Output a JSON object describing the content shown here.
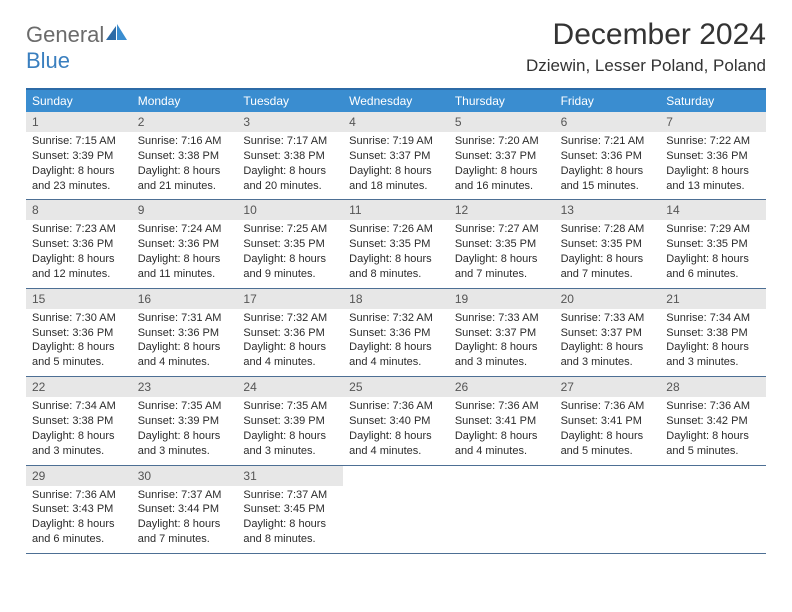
{
  "brand": {
    "part1": "General",
    "part2": "Blue"
  },
  "title": "December 2024",
  "location": "Dziewin, Lesser Poland, Poland",
  "colors": {
    "header_bar": "#3a8dd0",
    "top_rule": "#2c6aa6",
    "week_rule": "#4d6f94",
    "daynum_bg": "#e7e7e7",
    "text": "#333333",
    "logo_gray": "#6b6b6b",
    "logo_blue": "#3a7fbf"
  },
  "dayNames": [
    "Sunday",
    "Monday",
    "Tuesday",
    "Wednesday",
    "Thursday",
    "Friday",
    "Saturday"
  ],
  "weeks": [
    [
      {
        "n": "1",
        "sr": "Sunrise: 7:15 AM",
        "ss": "Sunset: 3:39 PM",
        "d1": "Daylight: 8 hours",
        "d2": "and 23 minutes."
      },
      {
        "n": "2",
        "sr": "Sunrise: 7:16 AM",
        "ss": "Sunset: 3:38 PM",
        "d1": "Daylight: 8 hours",
        "d2": "and 21 minutes."
      },
      {
        "n": "3",
        "sr": "Sunrise: 7:17 AM",
        "ss": "Sunset: 3:38 PM",
        "d1": "Daylight: 8 hours",
        "d2": "and 20 minutes."
      },
      {
        "n": "4",
        "sr": "Sunrise: 7:19 AM",
        "ss": "Sunset: 3:37 PM",
        "d1": "Daylight: 8 hours",
        "d2": "and 18 minutes."
      },
      {
        "n": "5",
        "sr": "Sunrise: 7:20 AM",
        "ss": "Sunset: 3:37 PM",
        "d1": "Daylight: 8 hours",
        "d2": "and 16 minutes."
      },
      {
        "n": "6",
        "sr": "Sunrise: 7:21 AM",
        "ss": "Sunset: 3:36 PM",
        "d1": "Daylight: 8 hours",
        "d2": "and 15 minutes."
      },
      {
        "n": "7",
        "sr": "Sunrise: 7:22 AM",
        "ss": "Sunset: 3:36 PM",
        "d1": "Daylight: 8 hours",
        "d2": "and 13 minutes."
      }
    ],
    [
      {
        "n": "8",
        "sr": "Sunrise: 7:23 AM",
        "ss": "Sunset: 3:36 PM",
        "d1": "Daylight: 8 hours",
        "d2": "and 12 minutes."
      },
      {
        "n": "9",
        "sr": "Sunrise: 7:24 AM",
        "ss": "Sunset: 3:36 PM",
        "d1": "Daylight: 8 hours",
        "d2": "and 11 minutes."
      },
      {
        "n": "10",
        "sr": "Sunrise: 7:25 AM",
        "ss": "Sunset: 3:35 PM",
        "d1": "Daylight: 8 hours",
        "d2": "and 9 minutes."
      },
      {
        "n": "11",
        "sr": "Sunrise: 7:26 AM",
        "ss": "Sunset: 3:35 PM",
        "d1": "Daylight: 8 hours",
        "d2": "and 8 minutes."
      },
      {
        "n": "12",
        "sr": "Sunrise: 7:27 AM",
        "ss": "Sunset: 3:35 PM",
        "d1": "Daylight: 8 hours",
        "d2": "and 7 minutes."
      },
      {
        "n": "13",
        "sr": "Sunrise: 7:28 AM",
        "ss": "Sunset: 3:35 PM",
        "d1": "Daylight: 8 hours",
        "d2": "and 7 minutes."
      },
      {
        "n": "14",
        "sr": "Sunrise: 7:29 AM",
        "ss": "Sunset: 3:35 PM",
        "d1": "Daylight: 8 hours",
        "d2": "and 6 minutes."
      }
    ],
    [
      {
        "n": "15",
        "sr": "Sunrise: 7:30 AM",
        "ss": "Sunset: 3:36 PM",
        "d1": "Daylight: 8 hours",
        "d2": "and 5 minutes."
      },
      {
        "n": "16",
        "sr": "Sunrise: 7:31 AM",
        "ss": "Sunset: 3:36 PM",
        "d1": "Daylight: 8 hours",
        "d2": "and 4 minutes."
      },
      {
        "n": "17",
        "sr": "Sunrise: 7:32 AM",
        "ss": "Sunset: 3:36 PM",
        "d1": "Daylight: 8 hours",
        "d2": "and 4 minutes."
      },
      {
        "n": "18",
        "sr": "Sunrise: 7:32 AM",
        "ss": "Sunset: 3:36 PM",
        "d1": "Daylight: 8 hours",
        "d2": "and 4 minutes."
      },
      {
        "n": "19",
        "sr": "Sunrise: 7:33 AM",
        "ss": "Sunset: 3:37 PM",
        "d1": "Daylight: 8 hours",
        "d2": "and 3 minutes."
      },
      {
        "n": "20",
        "sr": "Sunrise: 7:33 AM",
        "ss": "Sunset: 3:37 PM",
        "d1": "Daylight: 8 hours",
        "d2": "and 3 minutes."
      },
      {
        "n": "21",
        "sr": "Sunrise: 7:34 AM",
        "ss": "Sunset: 3:38 PM",
        "d1": "Daylight: 8 hours",
        "d2": "and 3 minutes."
      }
    ],
    [
      {
        "n": "22",
        "sr": "Sunrise: 7:34 AM",
        "ss": "Sunset: 3:38 PM",
        "d1": "Daylight: 8 hours",
        "d2": "and 3 minutes."
      },
      {
        "n": "23",
        "sr": "Sunrise: 7:35 AM",
        "ss": "Sunset: 3:39 PM",
        "d1": "Daylight: 8 hours",
        "d2": "and 3 minutes."
      },
      {
        "n": "24",
        "sr": "Sunrise: 7:35 AM",
        "ss": "Sunset: 3:39 PM",
        "d1": "Daylight: 8 hours",
        "d2": "and 3 minutes."
      },
      {
        "n": "25",
        "sr": "Sunrise: 7:36 AM",
        "ss": "Sunset: 3:40 PM",
        "d1": "Daylight: 8 hours",
        "d2": "and 4 minutes."
      },
      {
        "n": "26",
        "sr": "Sunrise: 7:36 AM",
        "ss": "Sunset: 3:41 PM",
        "d1": "Daylight: 8 hours",
        "d2": "and 4 minutes."
      },
      {
        "n": "27",
        "sr": "Sunrise: 7:36 AM",
        "ss": "Sunset: 3:41 PM",
        "d1": "Daylight: 8 hours",
        "d2": "and 5 minutes."
      },
      {
        "n": "28",
        "sr": "Sunrise: 7:36 AM",
        "ss": "Sunset: 3:42 PM",
        "d1": "Daylight: 8 hours",
        "d2": "and 5 minutes."
      }
    ],
    [
      {
        "n": "29",
        "sr": "Sunrise: 7:36 AM",
        "ss": "Sunset: 3:43 PM",
        "d1": "Daylight: 8 hours",
        "d2": "and 6 minutes."
      },
      {
        "n": "30",
        "sr": "Sunrise: 7:37 AM",
        "ss": "Sunset: 3:44 PM",
        "d1": "Daylight: 8 hours",
        "d2": "and 7 minutes."
      },
      {
        "n": "31",
        "sr": "Sunrise: 7:37 AM",
        "ss": "Sunset: 3:45 PM",
        "d1": "Daylight: 8 hours",
        "d2": "and 8 minutes."
      },
      {
        "empty": true
      },
      {
        "empty": true
      },
      {
        "empty": true
      },
      {
        "empty": true
      }
    ]
  ]
}
